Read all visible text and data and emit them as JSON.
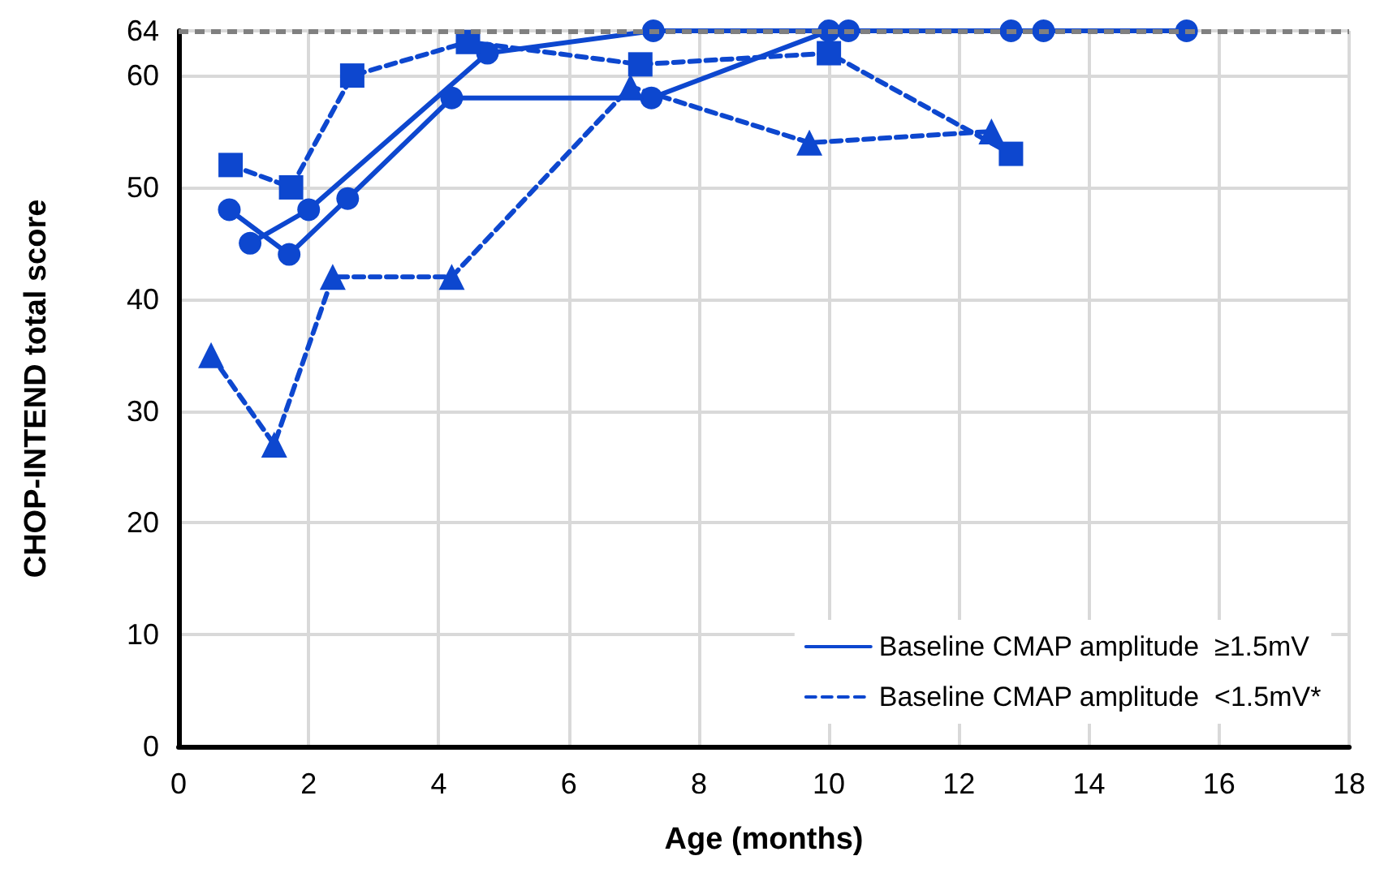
{
  "chart_data": {
    "type": "line",
    "xlabel": "Age (months)",
    "ylabel": "CHOP-INTEND total score",
    "xlim": [
      0,
      18
    ],
    "xticks": [
      0,
      2,
      4,
      6,
      8,
      10,
      12,
      14,
      16,
      18
    ],
    "ylim": [
      0,
      64
    ],
    "yticks": [
      0,
      10,
      20,
      30,
      40,
      50,
      60,
      64
    ],
    "grid": true,
    "legend": "bottom right",
    "ref_lines": [
      {
        "axis": "y",
        "value": 64,
        "color": "#808080",
        "line_style": "dashed"
      }
    ],
    "series": [
      {
        "name": "Baseline CMAP amplitude  ≥1.5mV",
        "color": "#0d47cf",
        "marker": "circle",
        "line_style": "solid",
        "x": [
          0.78,
          1.7,
          2.6,
          4.2,
          7.27,
          10,
          12.8,
          15.5
        ],
        "values": [
          48,
          44,
          49,
          58,
          58,
          64,
          64,
          64
        ]
      },
      {
        "color": "#0d47cf",
        "marker": "circle",
        "line_style": "solid",
        "x": [
          1.1,
          2.0,
          4.75,
          7.3,
          10.3,
          13.3
        ],
        "values": [
          45,
          48,
          62,
          64,
          64,
          64
        ]
      },
      {
        "name": "Baseline CMAP amplitude  <1.5mV*",
        "color": "#0d47cf",
        "marker": "square",
        "line_style": "dashed",
        "x": [
          0.8,
          1.73,
          2.67,
          4.45,
          7.1,
          10,
          12.8
        ],
        "values": [
          52,
          50,
          60,
          63,
          61,
          62,
          53
        ]
      },
      {
        "color": "#0d47cf",
        "marker": "triangle",
        "line_style": "dashed",
        "x": [
          0.5,
          1.47,
          2.37,
          4.2,
          6.95,
          9.7,
          12.5
        ],
        "values": [
          35,
          27,
          42,
          42,
          59,
          54,
          55
        ]
      }
    ]
  }
}
